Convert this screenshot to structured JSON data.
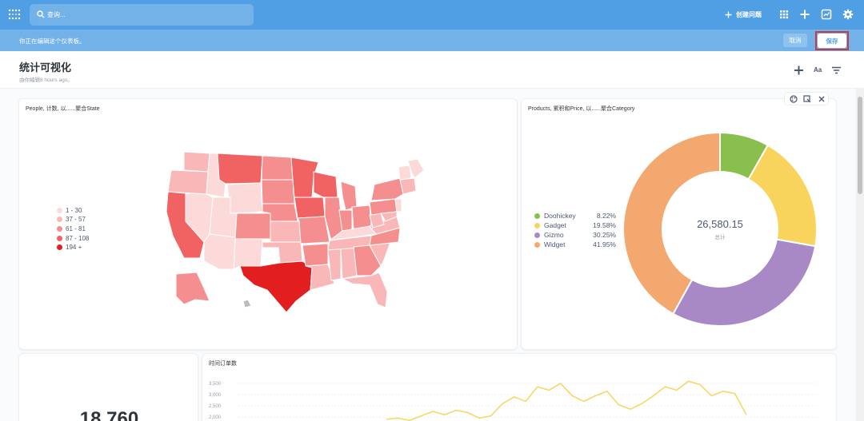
{
  "nav": {
    "search_placeholder": "查询...",
    "new_question": "创建问题",
    "icons": [
      "logo-icon",
      "search-icon",
      "plus-icon",
      "grid-icon",
      "add-icon",
      "dashboard-icon",
      "gear-icon"
    ]
  },
  "editbar": {
    "message": "你正在编辑这个仪表板。",
    "cancel": "取消",
    "save": "保存"
  },
  "header": {
    "title": "统计可视化",
    "subtitle": "由你编辑8 hours ago。",
    "text_label": "Aa"
  },
  "map_card": {
    "title": "People, 计数, 以......聚合State",
    "legend": [
      {
        "label": "1 - 30",
        "color": "#fcdada"
      },
      {
        "label": "37 - 57",
        "color": "#f9b7b7"
      },
      {
        "label": "61 - 81",
        "color": "#f58f8f"
      },
      {
        "label": "87 - 108",
        "color": "#f16363"
      },
      {
        "label": "194 +",
        "color": "#e31e1e"
      }
    ]
  },
  "pie_card": {
    "title": "Products, 累积和Price, 以......聚合Category",
    "total_value": "26,580.15",
    "total_label": "总计"
  },
  "chart_data": [
    {
      "type": "pie",
      "categories": [
        "Doohickey",
        "Gadget",
        "Gizmo",
        "Widget"
      ],
      "values": [
        8.22,
        19.58,
        30.25,
        41.95
      ],
      "labels": [
        "8.22%",
        "19.58%",
        "30.25%",
        "41.95%"
      ],
      "colors": [
        "#88bf4d",
        "#f9d45c",
        "#a989c5",
        "#f2a86f"
      ],
      "legend": "left"
    },
    {
      "type": "line",
      "title": "时间订单数",
      "y_ticks": [
        "3,500",
        "3,000",
        "2,500",
        "2,000"
      ],
      "ylim": [
        2000,
        3500
      ],
      "x_index": [
        0,
        1,
        2,
        3,
        4,
        5,
        6,
        7,
        8,
        9,
        10,
        11,
        12,
        13,
        14,
        15,
        16,
        17,
        18,
        19,
        20,
        21,
        22,
        23,
        24,
        25,
        26,
        27,
        28,
        29,
        30,
        31
      ],
      "values": [
        1900,
        1950,
        1850,
        2050,
        2250,
        2100,
        2300,
        2200,
        1950,
        2050,
        2600,
        2900,
        2700,
        3350,
        3200,
        3500,
        2950,
        2700,
        2950,
        3150,
        2550,
        2350,
        2600,
        2950,
        3350,
        3200,
        3600,
        3450,
        2950,
        3150,
        3050,
        2100
      ],
      "color": "#f9d45c"
    }
  ],
  "number_card": {
    "value": "18,760"
  }
}
